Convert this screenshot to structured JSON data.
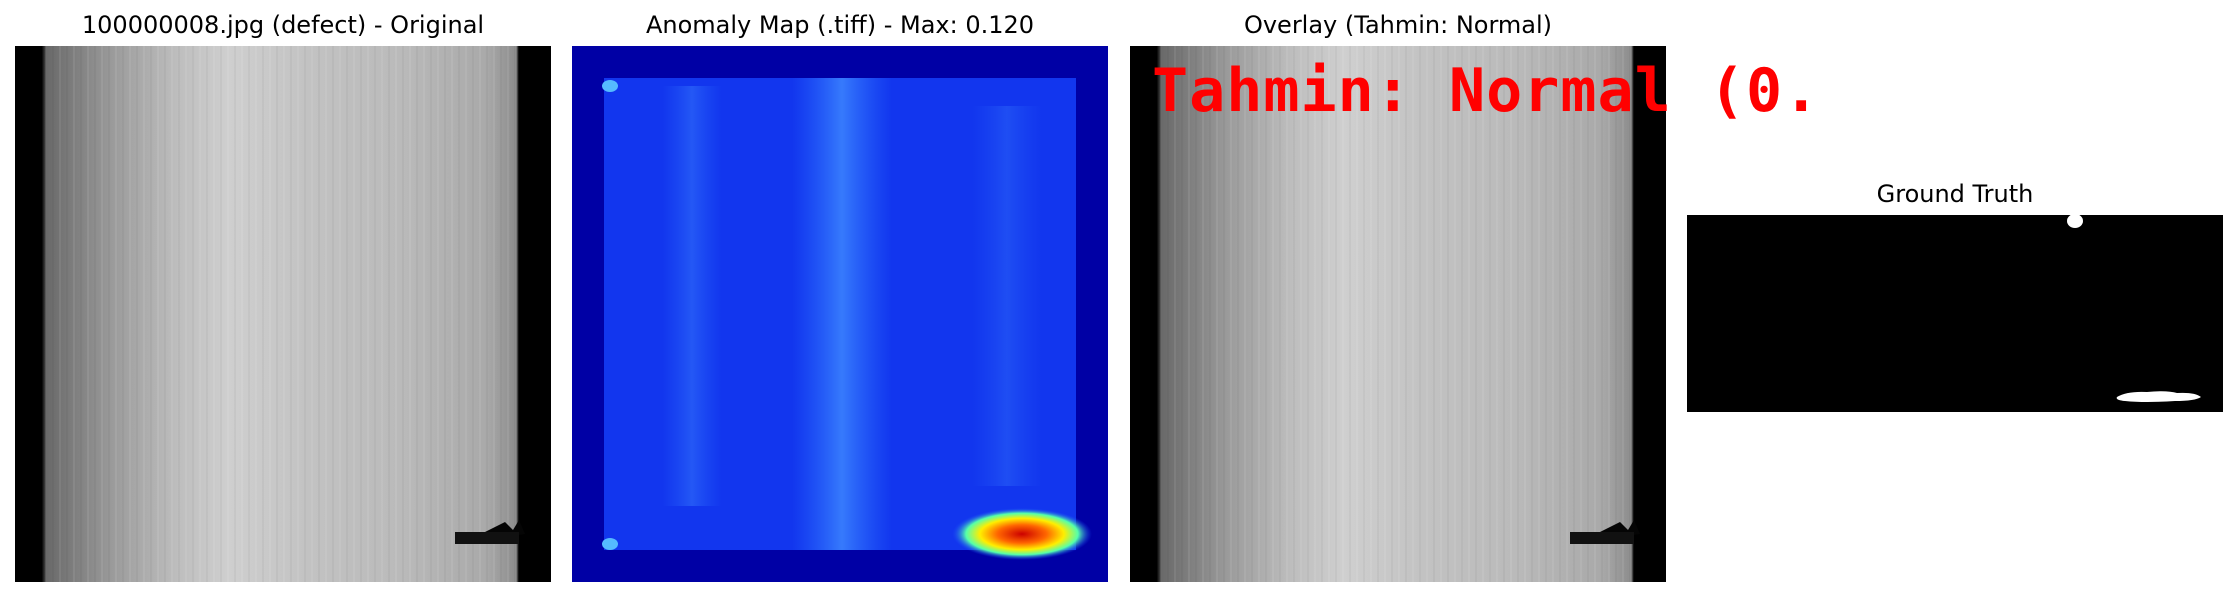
{
  "panels": [
    {
      "title": "100000008.jpg (defect) - Original"
    },
    {
      "title": "Anomaly Map (.tiff) - Max: 0.120"
    },
    {
      "title": "Overlay (Tahmin: Normal)",
      "overlay_text": "Tahmin: Normal (0.",
      "overlay_color": "#ff0000"
    },
    {
      "title": "Ground Truth"
    }
  ]
}
